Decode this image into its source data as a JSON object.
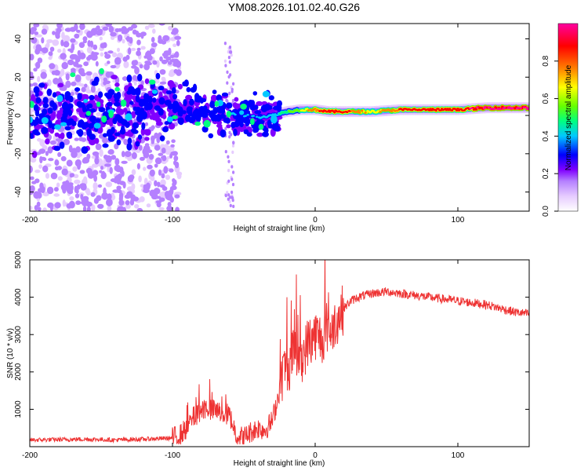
{
  "title": "YM08.2026.101.02.40.G26",
  "colors": {
    "snr_line": "#ee3333",
    "axis": "#000000",
    "colormap": [
      "#ffffff",
      "#e6ccff",
      "#b580ff",
      "#8000ff",
      "#0000ff",
      "#00c8ff",
      "#00ff80",
      "#66ff00",
      "#ffff00",
      "#ff8000",
      "#ff0000",
      "#ff00a0"
    ]
  },
  "chart_data": [
    {
      "type": "heatmap",
      "title": "YM08.2026.101.02.40.G26",
      "xlabel": "Height of straight line (km)",
      "ylabel": "Frequency (Hz)",
      "xlim": [
        -200,
        150
      ],
      "ylim": [
        -50,
        48
      ],
      "xticks": [
        -200,
        -100,
        0,
        100
      ],
      "xtick_labels": [
        "-200",
        "-100",
        "0",
        "100"
      ],
      "yticks": [
        -40,
        -20,
        0,
        20,
        40
      ],
      "ytick_labels": [
        "-40",
        "-20",
        "0",
        "20",
        "40"
      ],
      "colorbar": {
        "label": "Normalized spectral amplitude",
        "range": [
          0,
          1
        ],
        "ticks": [
          0.0,
          0.2,
          0.4,
          0.6,
          0.8
        ],
        "tick_labels": [
          "0.0",
          "0.2",
          "0.4",
          "0.6",
          "0.8"
        ]
      },
      "ridge": {
        "x": [
          -200,
          -150,
          -100,
          -90,
          -75,
          -60,
          -50,
          -40,
          -30,
          -20,
          -10,
          0,
          10,
          20,
          40,
          60,
          80,
          100,
          120,
          150
        ],
        "freq": [
          0,
          1,
          3,
          5,
          3,
          1,
          0,
          -1,
          0,
          2,
          3,
          3,
          2,
          2,
          2,
          3,
          3,
          3,
          4,
          4
        ],
        "amplitude": [
          0.15,
          0.15,
          0.2,
          0.35,
          0.3,
          0.3,
          0.28,
          0.3,
          0.35,
          0.45,
          0.55,
          0.75,
          0.8,
          0.8,
          0.6,
          0.8,
          0.8,
          0.85,
          0.9,
          0.9
        ]
      }
    },
    {
      "type": "line",
      "xlabel": "Height of straight line (km)",
      "ylabel": "SNR (10 * v/v)",
      "xlim": [
        -200,
        150
      ],
      "ylim": [
        0,
        5000
      ],
      "xticks": [
        -200,
        -100,
        0,
        100
      ],
      "xtick_labels": [
        "-200",
        "-100",
        "0",
        "100"
      ],
      "yticks": [
        1000,
        2000,
        3000,
        4000,
        5000
      ],
      "ytick_labels": [
        "1000",
        "2000",
        "3000",
        "4000",
        "5000"
      ],
      "series": [
        {
          "name": "SNR",
          "x": [
            -200,
            -180,
            -160,
            -140,
            -120,
            -100,
            -95,
            -90,
            -85,
            -80,
            -75,
            -70,
            -65,
            -60,
            -55,
            -50,
            -45,
            -40,
            -35,
            -30,
            -25,
            -22,
            -20,
            -18,
            -15,
            -10,
            -5,
            0,
            5,
            8,
            10,
            15,
            20,
            25,
            30,
            40,
            50,
            60,
            70,
            80,
            90,
            100,
            110,
            120,
            130,
            140,
            150
          ],
          "y": [
            180,
            190,
            200,
            180,
            200,
            230,
            300,
            500,
            800,
            1000,
            1050,
            950,
            900,
            850,
            300,
            250,
            400,
            500,
            450,
            700,
            1500,
            2100,
            2000,
            2200,
            2600,
            2300,
            2800,
            3000,
            2900,
            3200,
            3100,
            3400,
            3700,
            3900,
            4000,
            4100,
            4150,
            4100,
            4050,
            4000,
            3950,
            3900,
            3850,
            3800,
            3700,
            3600,
            3550
          ]
        }
      ]
    }
  ]
}
